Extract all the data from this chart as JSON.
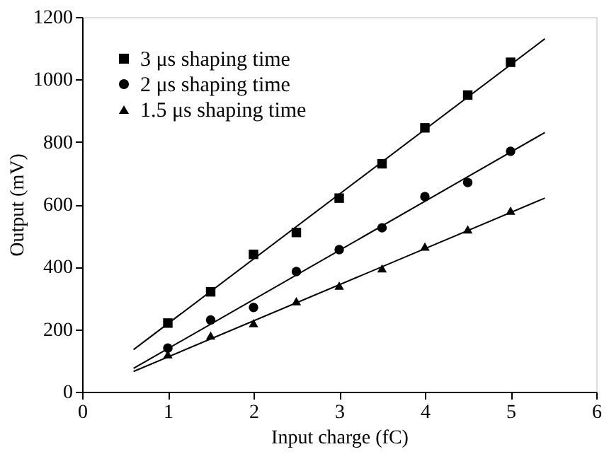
{
  "chart_data": {
    "type": "scatter",
    "xlabel": "Input charge (fC)",
    "ylabel": "Output (mV)",
    "xlim": [
      0,
      6
    ],
    "ylim": [
      0,
      1200
    ],
    "xticks": [
      0,
      1,
      2,
      3,
      4,
      5,
      6
    ],
    "yticks": [
      0,
      200,
      400,
      600,
      800,
      1000,
      1200
    ],
    "grid": false,
    "legend": "top left",
    "series": [
      {
        "name": "3 μs shaping time",
        "marker": "square",
        "color": "#000000",
        "x": [
          1,
          1.5,
          2,
          2.5,
          3,
          3.5,
          4,
          4.5,
          5
        ],
        "values": [
          220,
          320,
          440,
          510,
          620,
          730,
          845,
          950,
          1055
        ]
      },
      {
        "name": "2 μs shaping time",
        "marker": "circle",
        "color": "#000000",
        "x": [
          1,
          1.5,
          2,
          2.5,
          3,
          3.5,
          4,
          4.5,
          5
        ],
        "values": [
          140,
          230,
          270,
          385,
          455,
          525,
          625,
          670,
          770
        ]
      },
      {
        "name": "1.5 μs shaping time",
        "marker": "triangle",
        "color": "#000000",
        "x": [
          1,
          1.5,
          2,
          2.5,
          3,
          3.5,
          4,
          4.5,
          5
        ],
        "values": [
          120,
          180,
          220,
          290,
          340,
          395,
          465,
          520,
          580
        ]
      },
      {
        "type": "line",
        "marker": "none",
        "line_style": "solid",
        "color": "#000000",
        "x": [
          0.6,
          5.4
        ],
        "values": [
          135,
          1130
        ]
      },
      {
        "type": "line",
        "marker": "none",
        "line_style": "solid",
        "color": "#000000",
        "x": [
          0.6,
          5.4
        ],
        "values": [
          75,
          830
        ]
      },
      {
        "type": "line",
        "marker": "none",
        "line_style": "solid",
        "color": "#000000",
        "x": [
          0.6,
          5.4
        ],
        "values": [
          65,
          620
        ]
      }
    ]
  }
}
